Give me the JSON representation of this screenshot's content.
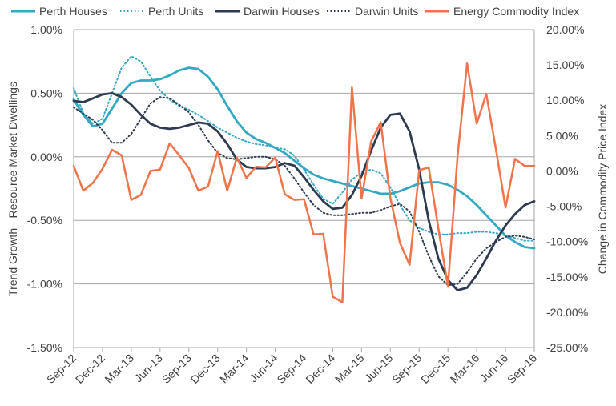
{
  "chart_data": {
    "type": "line",
    "title": "",
    "x_categories": [
      "Sep-12",
      "Dec-12",
      "Mar-13",
      "Jun-13",
      "Sep-13",
      "Dec-13",
      "Mar-14",
      "Jun-14",
      "Sep-14",
      "Dec-14",
      "Mar-15",
      "Jun-15",
      "Sep-15",
      "Dec-15",
      "Mar-16",
      "Jun-16",
      "Sep-16"
    ],
    "ylabel_left": "Trend Growth - Resource Market Dwellings",
    "ylabel_right": "Change in Commodity Price Index",
    "ylim_left": [
      -1.5,
      1.0
    ],
    "ylim_right": [
      -25,
      20
    ],
    "left_ticks": [
      "1.00%",
      "0.50%",
      "0.00%",
      "-0.50%",
      "-1.00%",
      "-1.50%"
    ],
    "right_ticks": [
      "20.00%",
      "15.00%",
      "10.00%",
      "5.00%",
      "0.00%",
      "-5.00%",
      "-10.00%",
      "-15.00%",
      "-20.00%",
      "-25.00%"
    ],
    "grid": "horizontal",
    "legend_position": "top",
    "series": [
      {
        "name": "Perth Houses",
        "axis": "left",
        "color": "#31A9C4",
        "style": "solid",
        "x": [
          0,
          1,
          2,
          3,
          4,
          5,
          6,
          7,
          8,
          9,
          10,
          11,
          12,
          13,
          14,
          15,
          16,
          17,
          18,
          19,
          20,
          21,
          22,
          23,
          24,
          25,
          26,
          27,
          28,
          29,
          30,
          31,
          32,
          33,
          34,
          35,
          36,
          37,
          38,
          39,
          40,
          41,
          42,
          43,
          44,
          45,
          46,
          47,
          48
        ],
        "values": [
          0.45,
          0.33,
          0.24,
          0.26,
          0.38,
          0.5,
          0.58,
          0.6,
          0.6,
          0.61,
          0.64,
          0.68,
          0.7,
          0.69,
          0.63,
          0.53,
          0.4,
          0.28,
          0.19,
          0.14,
          0.11,
          0.07,
          0.03,
          -0.03,
          -0.09,
          -0.14,
          -0.17,
          -0.19,
          -0.21,
          -0.23,
          -0.25,
          -0.27,
          -0.29,
          -0.29,
          -0.27,
          -0.24,
          -0.21,
          -0.2,
          -0.2,
          -0.22,
          -0.26,
          -0.31,
          -0.38,
          -0.46,
          -0.54,
          -0.62,
          -0.67,
          -0.71,
          -0.72
        ]
      },
      {
        "name": "Perth Units",
        "axis": "left",
        "color": "#31A9C4",
        "style": "dotted",
        "x": [
          0,
          1,
          2,
          3,
          4,
          5,
          6,
          7,
          8,
          9,
          10,
          11,
          12,
          13,
          14,
          15,
          16,
          17,
          18,
          19,
          20,
          21,
          22,
          23,
          24,
          25,
          26,
          27,
          28,
          29,
          30,
          31,
          32,
          33,
          34,
          35,
          36,
          37,
          38,
          39,
          40,
          41,
          42,
          43,
          44,
          45,
          46,
          47,
          48
        ],
        "values": [
          0.54,
          0.34,
          0.26,
          0.3,
          0.5,
          0.7,
          0.79,
          0.75,
          0.63,
          0.52,
          0.45,
          0.4,
          0.37,
          0.33,
          0.28,
          0.23,
          0.19,
          0.15,
          0.12,
          0.1,
          0.09,
          0.07,
          0.06,
          0.01,
          -0.1,
          -0.22,
          -0.33,
          -0.37,
          -0.28,
          -0.18,
          -0.12,
          -0.1,
          -0.13,
          -0.24,
          -0.38,
          -0.5,
          -0.56,
          -0.59,
          -0.61,
          -0.61,
          -0.6,
          -0.6,
          -0.59,
          -0.59,
          -0.6,
          -0.62,
          -0.64,
          -0.66,
          -0.66
        ]
      },
      {
        "name": "Darwin Houses",
        "axis": "left",
        "color": "#2E3A4F",
        "style": "solid",
        "x": [
          0,
          1,
          2,
          3,
          4,
          5,
          6,
          7,
          8,
          9,
          10,
          11,
          12,
          13,
          14,
          15,
          16,
          17,
          18,
          19,
          20,
          21,
          22,
          23,
          24,
          25,
          26,
          27,
          28,
          29,
          30,
          31,
          32,
          33,
          34,
          35,
          36,
          37,
          38,
          39,
          40,
          41,
          42,
          43,
          44,
          45,
          46,
          47,
          48
        ],
        "values": [
          0.44,
          0.43,
          0.46,
          0.49,
          0.5,
          0.47,
          0.41,
          0.33,
          0.26,
          0.23,
          0.22,
          0.23,
          0.25,
          0.27,
          0.26,
          0.2,
          0.1,
          -0.02,
          -0.08,
          -0.09,
          -0.09,
          -0.08,
          -0.05,
          -0.07,
          -0.16,
          -0.26,
          -0.35,
          -0.41,
          -0.4,
          -0.3,
          -0.15,
          0.05,
          0.23,
          0.33,
          0.34,
          0.2,
          -0.1,
          -0.5,
          -0.8,
          -0.97,
          -1.05,
          -1.03,
          -0.93,
          -0.8,
          -0.66,
          -0.54,
          -0.45,
          -0.38,
          -0.35
        ]
      },
      {
        "name": "Darwin Units",
        "axis": "left",
        "color": "#2E3A4F",
        "style": "dotted",
        "x": [
          0,
          1,
          2,
          3,
          4,
          5,
          6,
          7,
          8,
          9,
          10,
          11,
          12,
          13,
          14,
          15,
          16,
          17,
          18,
          19,
          20,
          21,
          22,
          23,
          24,
          25,
          26,
          27,
          28,
          29,
          30,
          31,
          32,
          33,
          34,
          35,
          36,
          37,
          38,
          39,
          40,
          41,
          42,
          43,
          44,
          45,
          46,
          47,
          48
        ],
        "values": [
          0.39,
          0.34,
          0.29,
          0.21,
          0.11,
          0.11,
          0.18,
          0.3,
          0.42,
          0.47,
          0.46,
          0.41,
          0.35,
          0.25,
          0.13,
          0.03,
          -0.01,
          -0.02,
          -0.01,
          0.0,
          0.0,
          -0.02,
          -0.07,
          -0.17,
          -0.28,
          -0.38,
          -0.44,
          -0.46,
          -0.46,
          -0.45,
          -0.44,
          -0.44,
          -0.42,
          -0.39,
          -0.37,
          -0.43,
          -0.59,
          -0.78,
          -0.94,
          -1.01,
          -1.0,
          -0.91,
          -0.8,
          -0.72,
          -0.67,
          -0.63,
          -0.62,
          -0.63,
          -0.65
        ]
      },
      {
        "name": "Energy Commodity Index",
        "axis": "right",
        "color": "#F0734A",
        "style": "solid",
        "x": [
          0,
          1,
          2,
          3,
          4,
          5,
          6,
          7,
          8,
          9,
          10,
          11,
          12,
          13,
          14,
          15,
          16,
          17,
          18,
          19,
          20,
          21,
          22,
          23,
          24,
          25,
          26,
          27,
          28,
          29,
          30,
          31,
          32,
          33,
          34,
          35,
          36,
          37,
          38,
          39,
          40,
          41,
          42,
          43,
          44,
          45,
          46,
          47,
          48
        ],
        "values": [
          0.7,
          -2.8,
          -1.7,
          0.3,
          3.0,
          2.2,
          -4.1,
          -3.4,
          0.0,
          0.2,
          3.9,
          2.2,
          0.4,
          -2.8,
          -2.2,
          2.8,
          -2.8,
          1.9,
          -1.0,
          0.6,
          0.5,
          1.9,
          -3.3,
          -4.1,
          -4.0,
          -9.0,
          -8.9,
          -17.8,
          -18.6,
          11.8,
          -3.9,
          4.2,
          6.9,
          -3.8,
          -10.2,
          -13.3,
          0.1,
          0.5,
          -8.1,
          -16.4,
          2.1,
          15.2,
          6.7,
          10.9,
          3.1,
          -5.2,
          1.7,
          0.7,
          0.7
        ]
      }
    ]
  }
}
